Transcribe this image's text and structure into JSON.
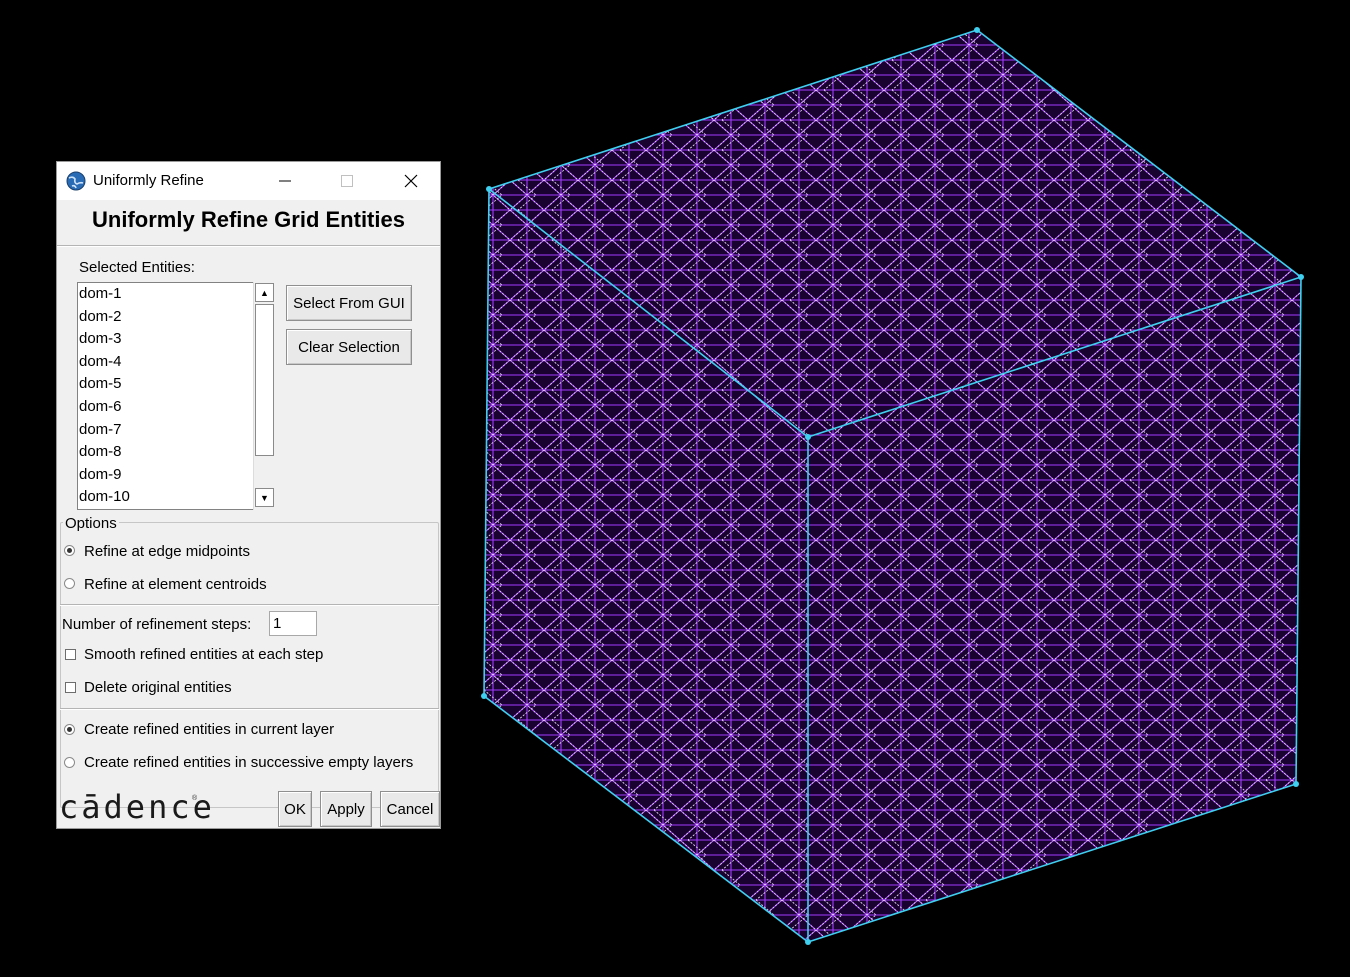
{
  "window": {
    "title": "Uniformly Refine"
  },
  "dialog": {
    "heading": "Uniformly Refine Grid Entities",
    "selected_label": "Selected Entities:",
    "entities": [
      "dom-1",
      "dom-2",
      "dom-3",
      "dom-4",
      "dom-5",
      "dom-6",
      "dom-7",
      "dom-8",
      "dom-9",
      "dom-10"
    ],
    "select_from_gui": "Select From GUI",
    "clear_selection": "Clear Selection",
    "options_label": "Options",
    "refine_edge_midpoints": "Refine at edge midpoints",
    "refine_element_centroids": "Refine at element centroids",
    "steps_label": "Number of refinement steps:",
    "steps_value": "1",
    "smooth_label": "Smooth refined entities at each step",
    "delete_label": "Delete original entities",
    "current_layer_label": "Create refined entities in current layer",
    "empty_layers_label": "Create refined entities in successive empty layers",
    "logo_text": "cādence",
    "logo_reg": "®",
    "ok": "OK",
    "apply": "Apply",
    "cancel": "Cancel"
  },
  "state": {
    "refine_mode": "edge_midpoints",
    "smooth_checked": false,
    "delete_checked": false,
    "layer_mode": "current_layer"
  },
  "colors": {
    "face_fill": "#1a0230",
    "mesh_purple": "#a33bff",
    "mesh_light": "#e6d7f5",
    "cube_edge": "#3fd0f0"
  },
  "icons": {
    "app": "globe-icon",
    "minimize": "minimize-icon",
    "maximize": "maximize-icon",
    "close": "close-icon",
    "scroll_up": "chevron-up-icon",
    "scroll_down": "chevron-down-icon"
  }
}
